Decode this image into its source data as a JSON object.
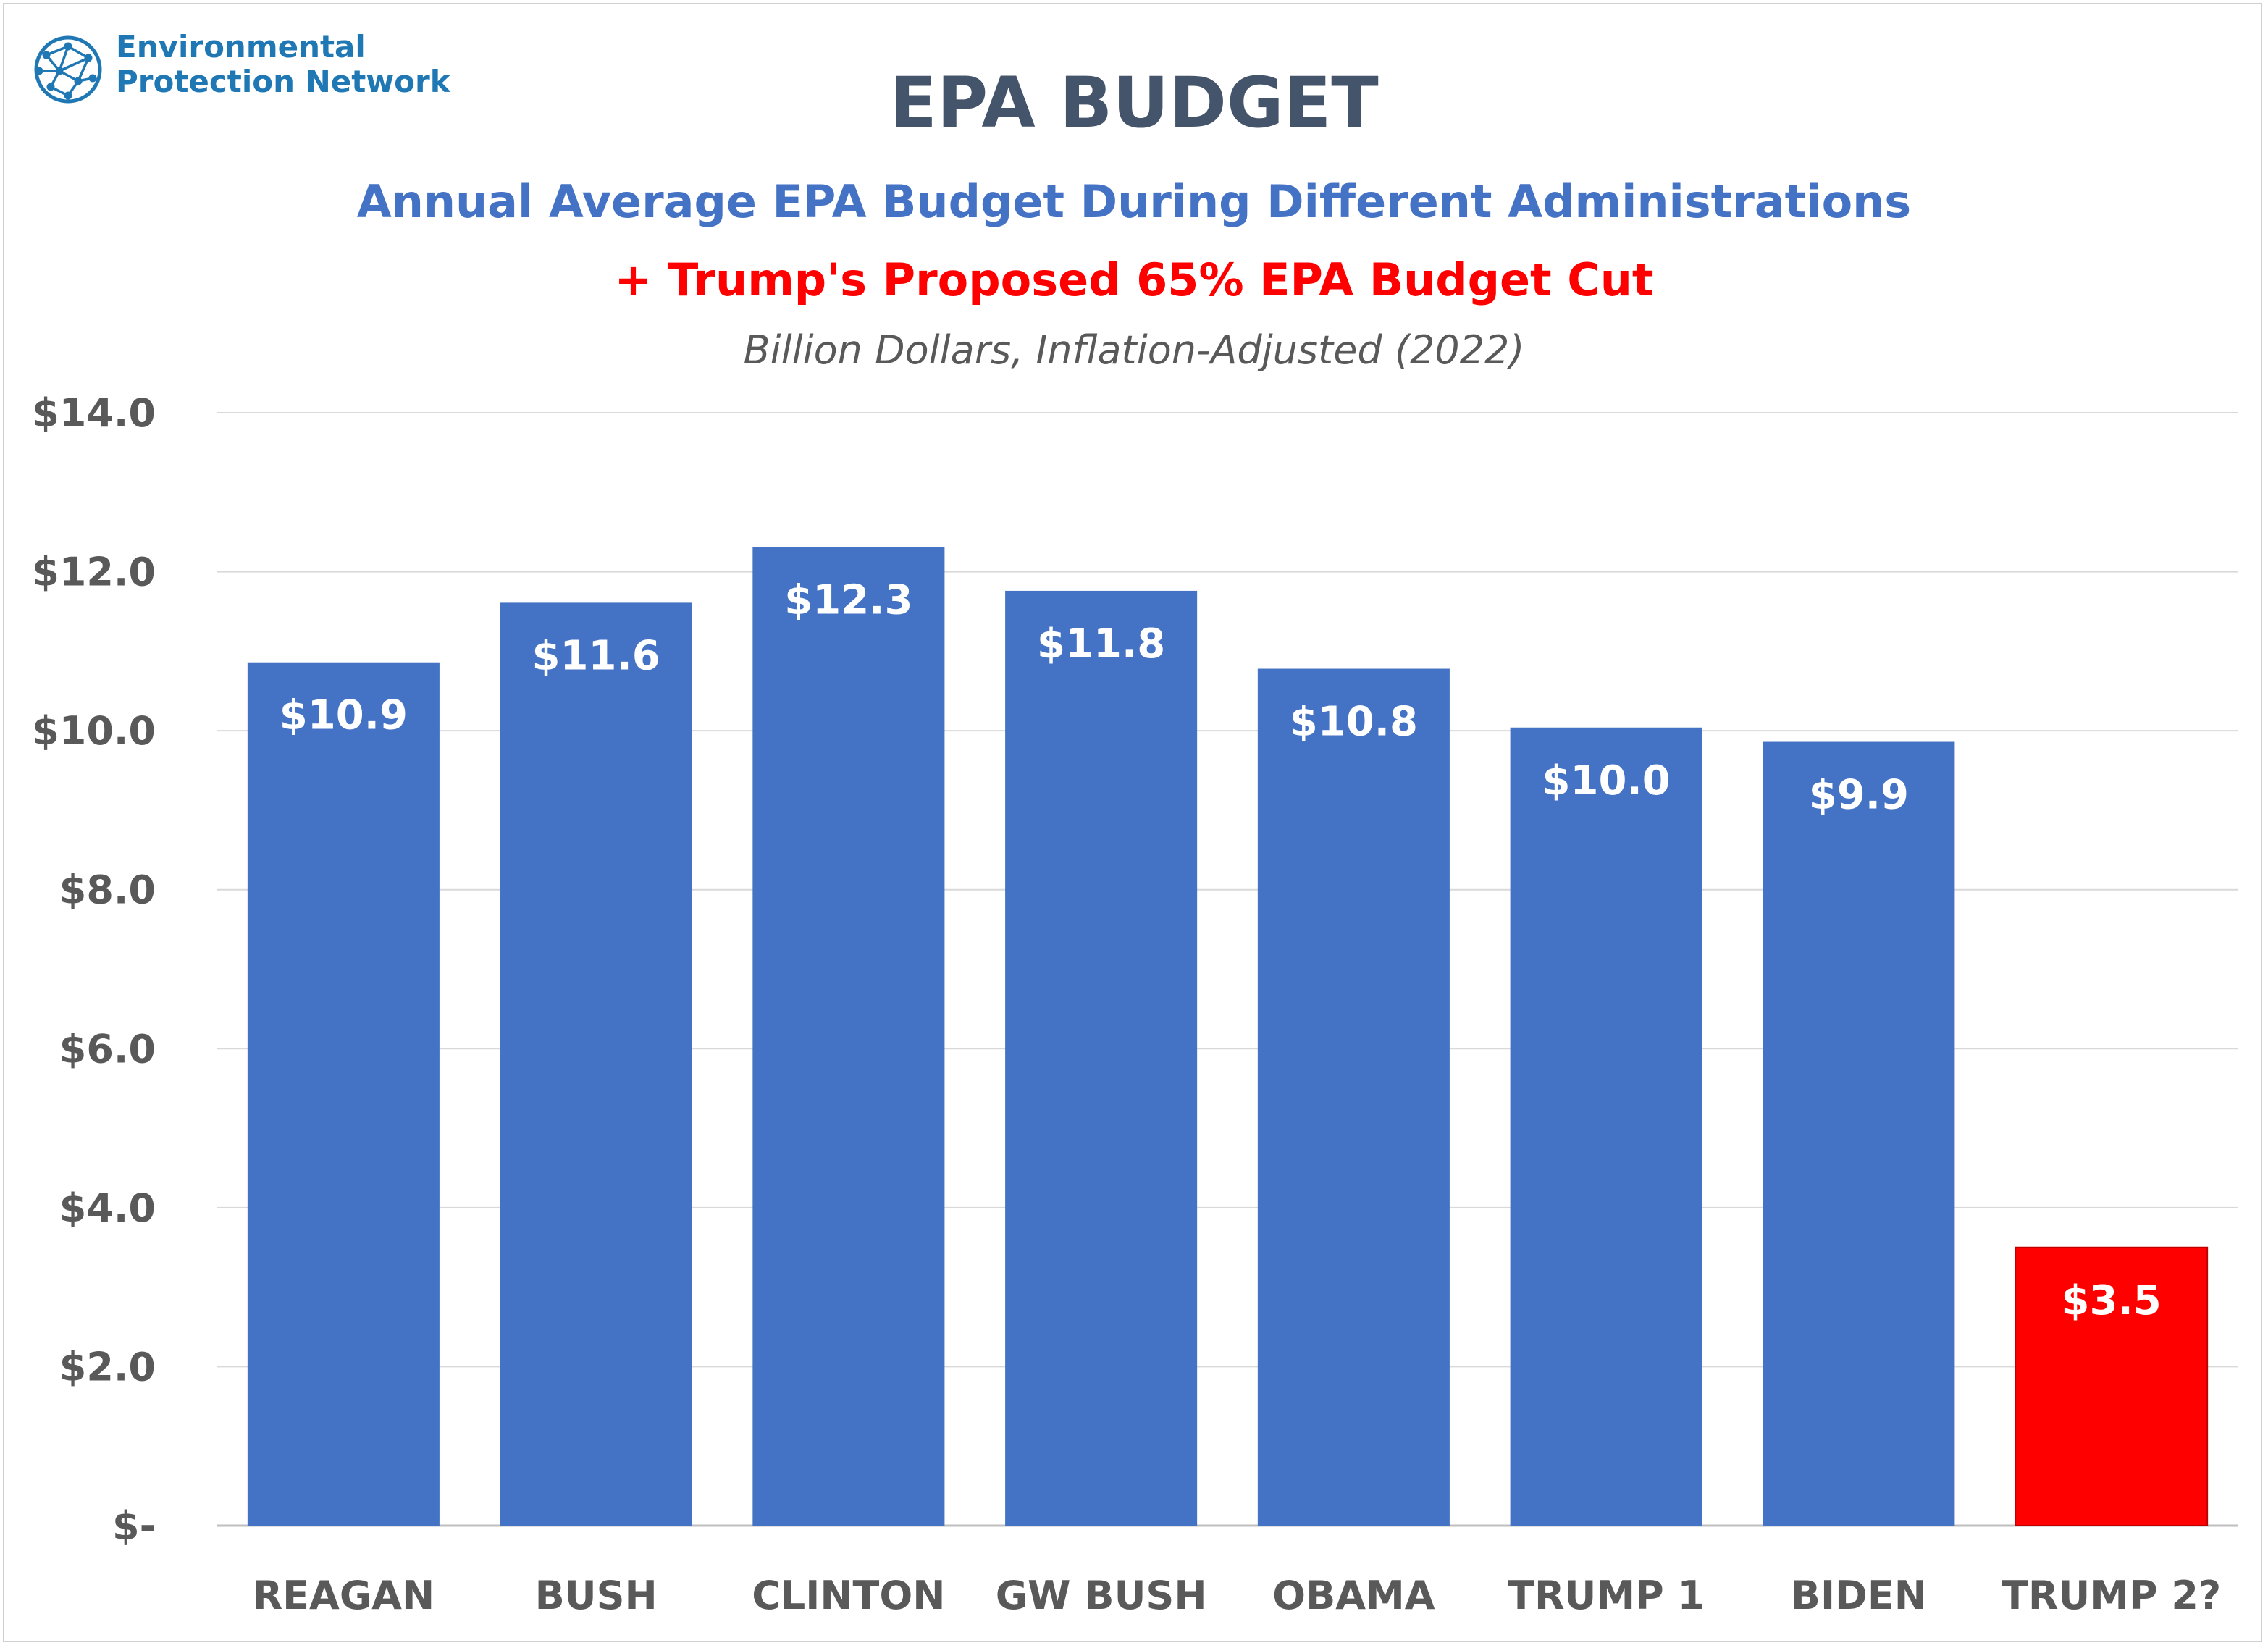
{
  "logo": {
    "line1": "Environmental",
    "line2": "Protection Network",
    "icon": "globe-network-icon"
  },
  "header": {
    "title": "EPA BUDGET",
    "subtitle": "Annual Average EPA Budget During Different Administrations",
    "subtitle2": "+ Trump's Proposed 65% EPA Budget Cut",
    "unit": "Billion Dollars, Inflation-Adjusted (2022)"
  },
  "chart_data": {
    "type": "bar",
    "title": "EPA BUDGET",
    "categories": [
      "REAGAN",
      "BUSH",
      "CLINTON",
      "GW BUSH",
      "OBAMA",
      "TRUMP 1",
      "BIDEN",
      "TRUMP 2?"
    ],
    "values": [
      10.86,
      11.61,
      12.31,
      11.76,
      10.78,
      10.04,
      9.86,
      3.5
    ],
    "data_labels": [
      "$10.9",
      "$11.6",
      "$12.3",
      "$11.8",
      "$10.8",
      "$10.0",
      "$9.9",
      "$3.5"
    ],
    "bar_colors": [
      "#4472c4",
      "#4472c4",
      "#4472c4",
      "#4472c4",
      "#4472c4",
      "#4472c4",
      "#4472c4",
      "#ff0000"
    ],
    "ylim": [
      0,
      14
    ],
    "yticks": [
      0,
      2,
      4,
      6,
      8,
      10,
      12,
      14
    ],
    "ytick_labels": [
      "$-",
      "$2.0",
      "$4.0",
      "$6.0",
      "$8.0",
      "$10.0",
      "$12.0",
      "$14.0"
    ],
    "grid": true,
    "legend": false,
    "xlabel": "",
    "ylabel": ""
  }
}
